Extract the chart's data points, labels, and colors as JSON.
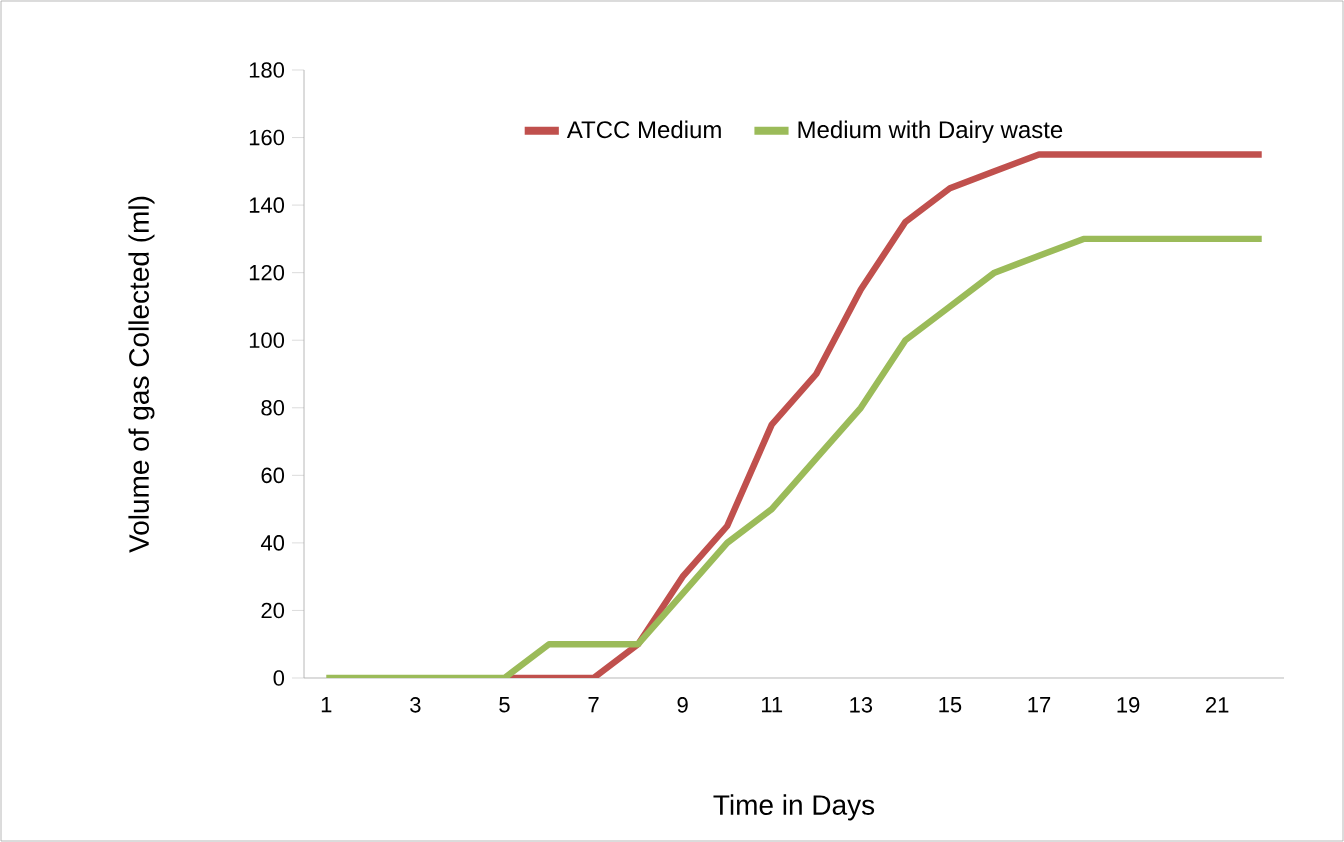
{
  "chart_data": {
    "type": "line",
    "xlabel": "Time in Days",
    "ylabel": "Volume of gas Collected (ml)",
    "categories": [
      "1",
      null,
      "3",
      null,
      "5",
      null,
      "7",
      null,
      "9",
      null,
      "11",
      null,
      "13",
      null,
      "15",
      null,
      "17",
      null,
      "19",
      null,
      "21",
      null
    ],
    "series": [
      {
        "name": "ATCC Medium",
        "color": "#c0504d",
        "values": [
          null,
          null,
          null,
          null,
          0,
          0,
          0,
          10,
          30,
          45,
          75,
          90,
          115,
          135,
          145,
          150,
          155,
          155,
          155,
          155,
          155,
          155
        ]
      },
      {
        "name": "Medium with Dairy waste",
        "color": "#9bbb59",
        "values": [
          0,
          0,
          0,
          0,
          0,
          10,
          10,
          10,
          25,
          40,
          50,
          65,
          80,
          100,
          110,
          120,
          125,
          130,
          130,
          130,
          130,
          130
        ]
      }
    ],
    "ylim": [
      0,
      180
    ],
    "yticks": [
      0,
      20,
      40,
      60,
      80,
      100,
      120,
      140,
      160,
      180
    ],
    "legend": "top",
    "grid": false,
    "marker": "none",
    "line_style": "solid"
  }
}
